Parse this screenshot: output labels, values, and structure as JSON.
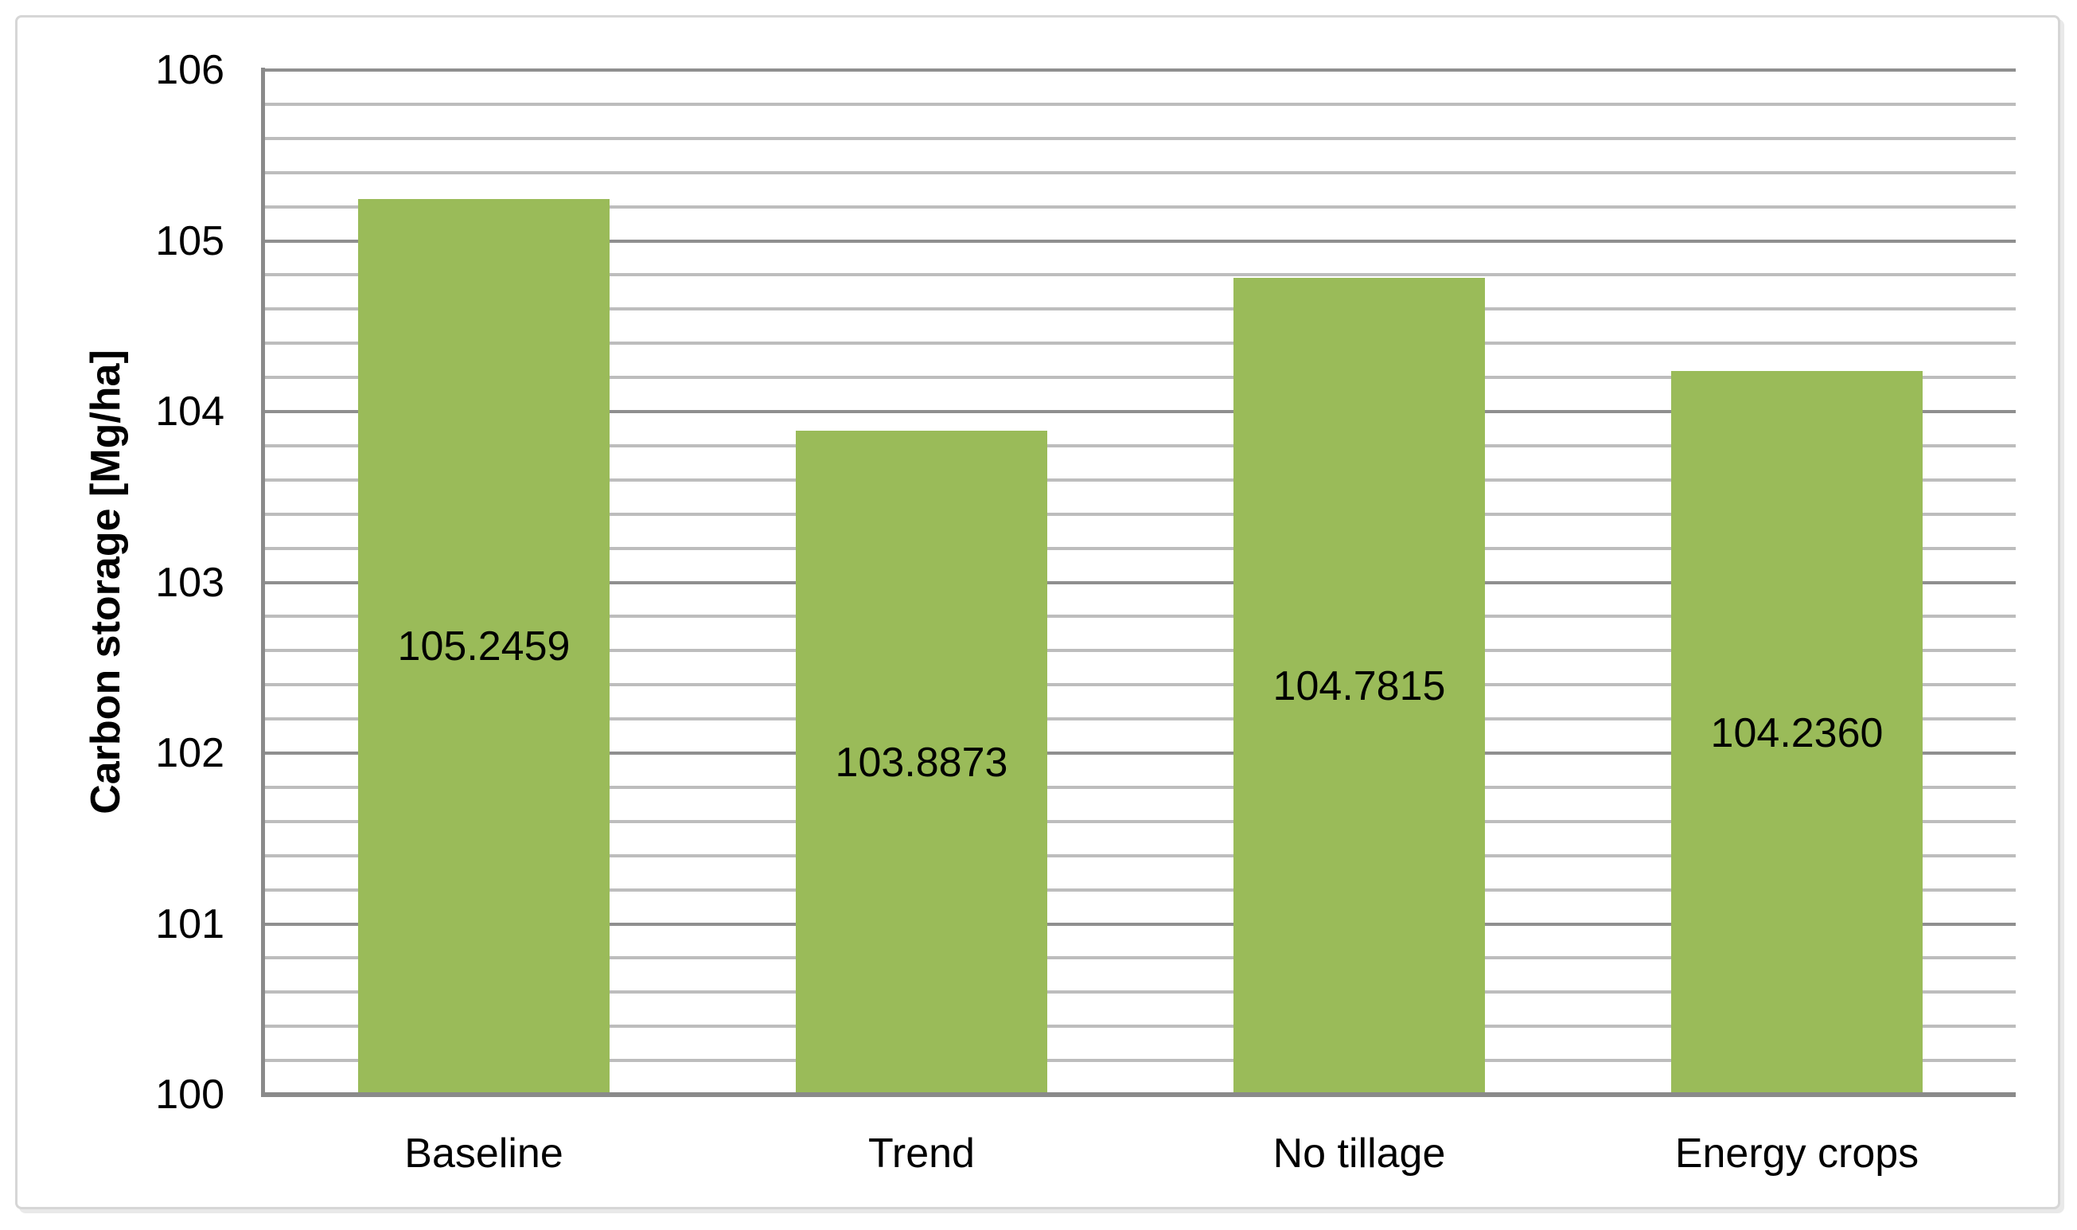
{
  "chart_data": {
    "type": "bar",
    "title": "",
    "xlabel": "",
    "ylabel": "Carbon storage [Mg/ha]",
    "categories": [
      "Baseline",
      "Trend",
      "No tillage",
      "Energy crops"
    ],
    "values": [
      105.2459,
      103.8873,
      104.7815,
      104.236
    ],
    "value_labels": [
      "105.2459",
      "103.8873",
      "104.7815",
      "104.2360"
    ],
    "value_label_position": "inside-center",
    "ylim": [
      100,
      106
    ],
    "y_major_ticks": [
      100,
      101,
      102,
      103,
      104,
      105,
      106
    ],
    "y_tick_labels": [
      "100",
      "101",
      "102",
      "103",
      "104",
      "105",
      "106"
    ],
    "y_minor_step": 0.2,
    "grid": "horizontal, major and minor, on",
    "legend": "none",
    "colors": {
      "bar_fill": "#9abb59",
      "major_gridline": "#8f8f8f",
      "minor_gridline": "#bdbdbd",
      "axis_line": "#8a8a8a",
      "text": "#000000",
      "frame_border": "#d6d6d6",
      "background": "#ffffff"
    }
  }
}
